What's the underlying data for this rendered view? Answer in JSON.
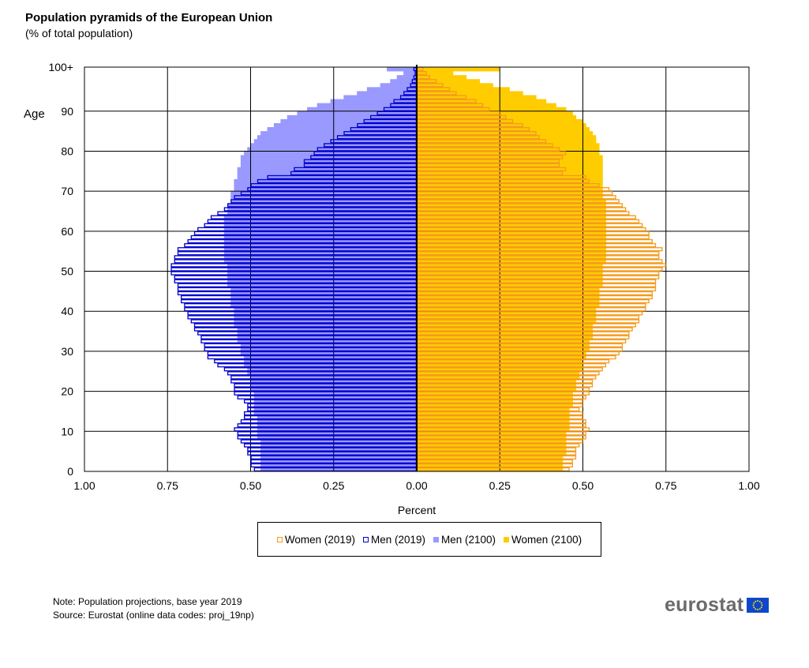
{
  "title": "Population pyramids of the European Union",
  "subtitle": "(% of total population)",
  "notes": {
    "line1": "Note: Population projections, base year 2019",
    "line2": "Source: Eurostat (online data codes: proj_19np)"
  },
  "logo": {
    "text": "eurostat"
  },
  "colors": {
    "women_2019": "#f39a1c",
    "men_2019": "#0000cc",
    "men_2100": "#9999ff",
    "women_2100": "#ffcc00"
  },
  "legend": [
    {
      "label": "Women (2019)",
      "series": "women_2019",
      "style": "outline",
      "color": "#f39a1c"
    },
    {
      "label": "Men (2019)",
      "series": "men_2019",
      "style": "outline",
      "color": "#0000cc"
    },
    {
      "label": "Men (2100)",
      "series": "men_2100",
      "style": "filled",
      "color": "#9999ff"
    },
    {
      "label": "Women (2100)",
      "series": "women_2100",
      "style": "filled",
      "color": "#ffcc00"
    }
  ],
  "chart_data": {
    "type": "bar",
    "orientation": "horizontal",
    "xlabel": "Percent",
    "ylabel": "Age",
    "x_ticks": [
      "1.00",
      "0.75",
      "0.50",
      "0.25",
      "0.00",
      "0.25",
      "0.50",
      "0.75",
      "1.00"
    ],
    "y_ticks": [
      "0",
      "10",
      "20",
      "30",
      "40",
      "50",
      "60",
      "70",
      "80",
      "90",
      "100+"
    ],
    "xlim": [
      -1,
      1
    ],
    "ylim": [
      0,
      100
    ],
    "grid": true,
    "series": [
      {
        "name": "Men (2100)",
        "key": "men_2100",
        "values": [
          0.47,
          0.47,
          0.47,
          0.47,
          0.47,
          0.47,
          0.47,
          0.47,
          0.48,
          0.48,
          0.48,
          0.48,
          0.48,
          0.48,
          0.49,
          0.49,
          0.49,
          0.49,
          0.49,
          0.49,
          0.5,
          0.5,
          0.5,
          0.5,
          0.51,
          0.51,
          0.52,
          0.52,
          0.52,
          0.53,
          0.53,
          0.53,
          0.54,
          0.54,
          0.54,
          0.54,
          0.55,
          0.55,
          0.55,
          0.55,
          0.55,
          0.56,
          0.56,
          0.56,
          0.56,
          0.56,
          0.57,
          0.57,
          0.57,
          0.57,
          0.57,
          0.57,
          0.58,
          0.58,
          0.58,
          0.58,
          0.58,
          0.58,
          0.58,
          0.58,
          0.58,
          0.58,
          0.58,
          0.58,
          0.57,
          0.57,
          0.57,
          0.56,
          0.56,
          0.56,
          0.55,
          0.55,
          0.55,
          0.54,
          0.54,
          0.54,
          0.53,
          0.53,
          0.53,
          0.52,
          0.51,
          0.5,
          0.49,
          0.48,
          0.47,
          0.45,
          0.43,
          0.41,
          0.39,
          0.36,
          0.33,
          0.3,
          0.26,
          0.22,
          0.18,
          0.15,
          0.11,
          0.08,
          0.06,
          0.04,
          0.09
        ]
      },
      {
        "name": "Women (2100)",
        "key": "women_2100",
        "values": [
          0.44,
          0.44,
          0.44,
          0.44,
          0.45,
          0.45,
          0.45,
          0.45,
          0.45,
          0.45,
          0.46,
          0.46,
          0.46,
          0.46,
          0.46,
          0.46,
          0.47,
          0.47,
          0.47,
          0.47,
          0.48,
          0.48,
          0.48,
          0.49,
          0.49,
          0.5,
          0.5,
          0.5,
          0.51,
          0.51,
          0.52,
          0.52,
          0.52,
          0.53,
          0.53,
          0.53,
          0.53,
          0.54,
          0.54,
          0.54,
          0.54,
          0.55,
          0.55,
          0.55,
          0.55,
          0.55,
          0.56,
          0.56,
          0.56,
          0.56,
          0.56,
          0.56,
          0.57,
          0.57,
          0.57,
          0.57,
          0.57,
          0.57,
          0.57,
          0.57,
          0.57,
          0.57,
          0.57,
          0.57,
          0.57,
          0.57,
          0.57,
          0.57,
          0.56,
          0.56,
          0.56,
          0.56,
          0.56,
          0.56,
          0.56,
          0.56,
          0.56,
          0.56,
          0.56,
          0.55,
          0.55,
          0.55,
          0.54,
          0.54,
          0.53,
          0.52,
          0.51,
          0.5,
          0.48,
          0.47,
          0.45,
          0.42,
          0.39,
          0.36,
          0.32,
          0.28,
          0.23,
          0.19,
          0.15,
          0.11,
          0.25
        ]
      },
      {
        "name": "Men (2019)",
        "key": "men_2019",
        "values": [
          0.49,
          0.5,
          0.5,
          0.5,
          0.51,
          0.51,
          0.52,
          0.53,
          0.54,
          0.54,
          0.55,
          0.54,
          0.53,
          0.52,
          0.52,
          0.51,
          0.51,
          0.52,
          0.54,
          0.55,
          0.55,
          0.55,
          0.56,
          0.56,
          0.57,
          0.58,
          0.6,
          0.61,
          0.63,
          0.63,
          0.64,
          0.64,
          0.65,
          0.65,
          0.66,
          0.67,
          0.67,
          0.68,
          0.69,
          0.69,
          0.7,
          0.7,
          0.71,
          0.71,
          0.72,
          0.72,
          0.72,
          0.73,
          0.73,
          0.74,
          0.74,
          0.74,
          0.73,
          0.73,
          0.72,
          0.72,
          0.7,
          0.69,
          0.68,
          0.67,
          0.66,
          0.64,
          0.63,
          0.62,
          0.6,
          0.58,
          0.57,
          0.56,
          0.55,
          0.53,
          0.51,
          0.5,
          0.48,
          0.45,
          0.38,
          0.37,
          0.34,
          0.34,
          0.32,
          0.31,
          0.3,
          0.28,
          0.26,
          0.24,
          0.22,
          0.2,
          0.18,
          0.16,
          0.14,
          0.12,
          0.1,
          0.08,
          0.07,
          0.05,
          0.04,
          0.03,
          0.02,
          0.015,
          0.01,
          0.006,
          0.01
        ]
      },
      {
        "name": "Women (2019)",
        "key": "women_2019",
        "values": [
          0.46,
          0.47,
          0.47,
          0.48,
          0.48,
          0.48,
          0.49,
          0.5,
          0.51,
          0.51,
          0.52,
          0.51,
          0.51,
          0.5,
          0.5,
          0.49,
          0.5,
          0.5,
          0.51,
          0.52,
          0.52,
          0.53,
          0.53,
          0.54,
          0.55,
          0.56,
          0.57,
          0.58,
          0.6,
          0.61,
          0.62,
          0.62,
          0.63,
          0.64,
          0.64,
          0.65,
          0.66,
          0.67,
          0.67,
          0.68,
          0.69,
          0.69,
          0.7,
          0.71,
          0.71,
          0.72,
          0.72,
          0.72,
          0.73,
          0.73,
          0.74,
          0.75,
          0.74,
          0.73,
          0.73,
          0.74,
          0.72,
          0.71,
          0.7,
          0.7,
          0.69,
          0.68,
          0.67,
          0.66,
          0.64,
          0.63,
          0.62,
          0.61,
          0.6,
          0.59,
          0.58,
          0.55,
          0.52,
          0.51,
          0.44,
          0.45,
          0.43,
          0.43,
          0.44,
          0.45,
          0.43,
          0.41,
          0.39,
          0.37,
          0.36,
          0.34,
          0.32,
          0.29,
          0.27,
          0.25,
          0.22,
          0.2,
          0.18,
          0.15,
          0.12,
          0.1,
          0.08,
          0.06,
          0.04,
          0.03,
          0.02
        ]
      }
    ]
  }
}
